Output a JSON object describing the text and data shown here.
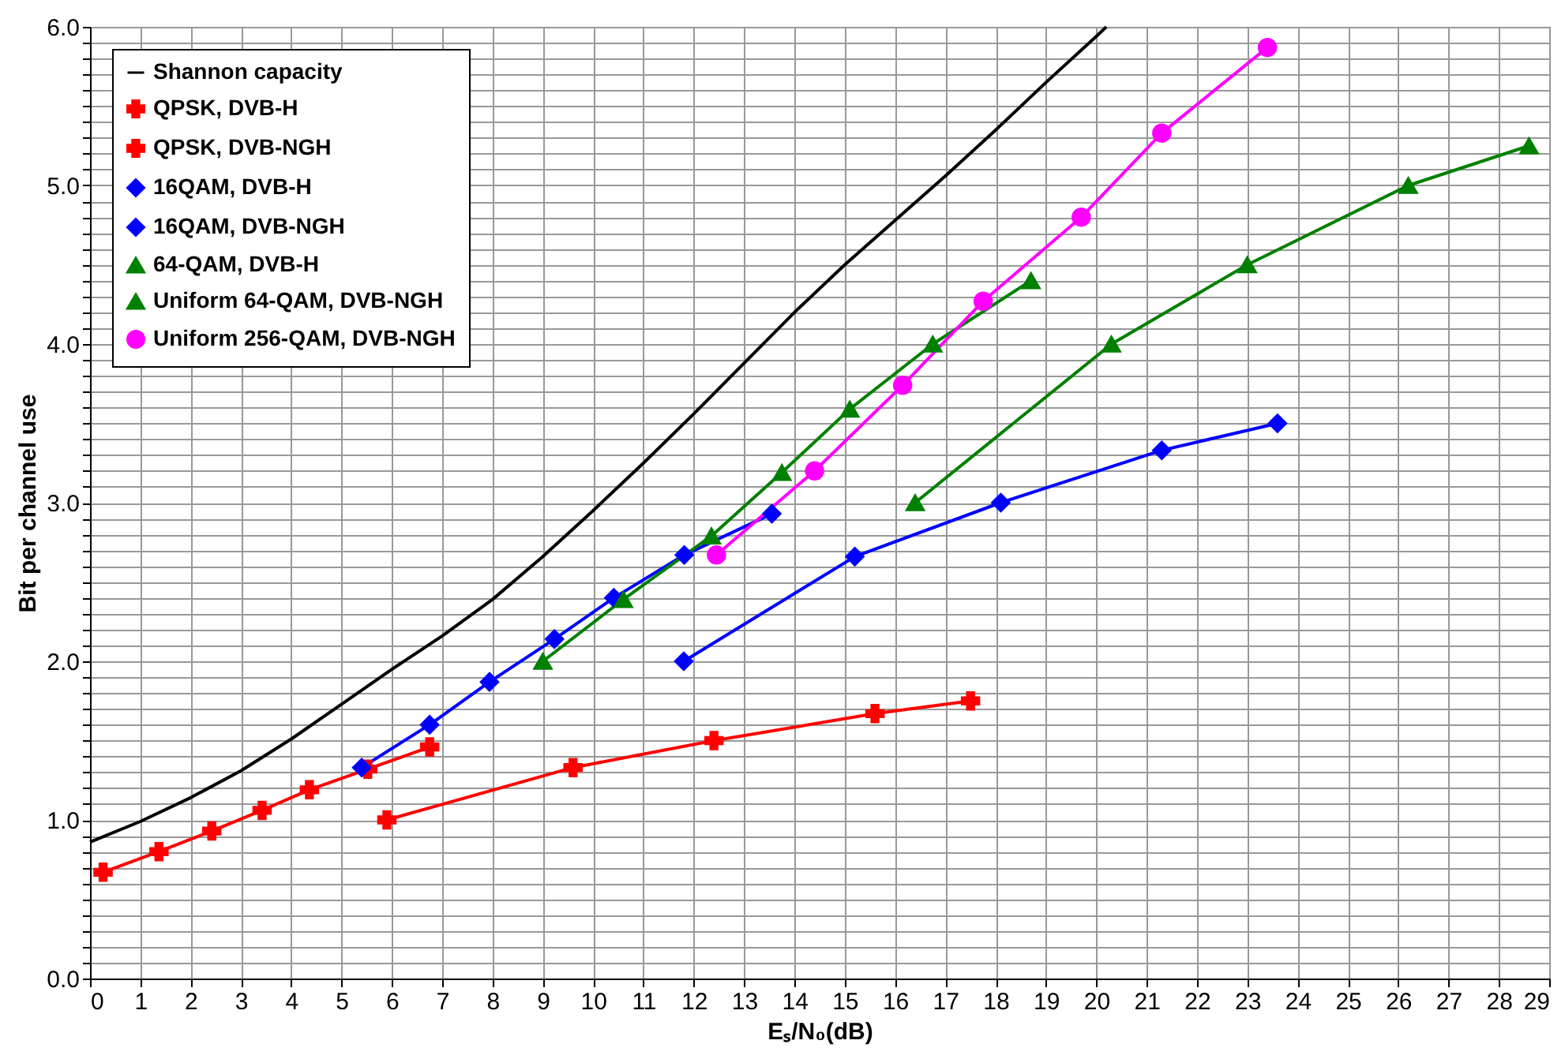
{
  "chart_data": {
    "type": "line",
    "xlabel": "Eₛ/N₀(dB)",
    "ylabel": "Bit per channel use",
    "xlim": [
      0,
      29
    ],
    "ylim": [
      0,
      6
    ],
    "xticks": [
      0,
      1,
      2,
      3,
      4,
      5,
      6,
      7,
      8,
      9,
      10,
      11,
      12,
      13,
      14,
      15,
      16,
      17,
      18,
      19,
      20,
      21,
      22,
      23,
      24,
      25,
      26,
      27,
      28,
      29
    ],
    "yticks": [
      {
        "value": 0,
        "label": "0.0"
      },
      {
        "value": 0.1,
        "label": null
      },
      {
        "value": 0.2,
        "label": null
      },
      {
        "value": 0.3,
        "label": null
      },
      {
        "value": 0.4,
        "label": null
      },
      {
        "value": 0.5,
        "label": null
      },
      {
        "value": 0.6,
        "label": null
      },
      {
        "value": 0.7,
        "label": null
      },
      {
        "value": 0.8,
        "label": null
      },
      {
        "value": 0.9,
        "label": null
      },
      {
        "value": 1,
        "label": "1.0"
      },
      {
        "value": 1.1,
        "label": null
      },
      {
        "value": 1.2,
        "label": null
      },
      {
        "value": 1.3,
        "label": null
      },
      {
        "value": 1.4,
        "label": null
      },
      {
        "value": 1.5,
        "label": null
      },
      {
        "value": 1.6,
        "label": null
      },
      {
        "value": 1.7,
        "label": null
      },
      {
        "value": 1.8,
        "label": null
      },
      {
        "value": 1.9,
        "label": null
      },
      {
        "value": 2,
        "label": "2.0"
      },
      {
        "value": 2.1,
        "label": null
      },
      {
        "value": 2.2,
        "label": null
      },
      {
        "value": 2.3,
        "label": null
      },
      {
        "value": 2.4,
        "label": null
      },
      {
        "value": 2.5,
        "label": null
      },
      {
        "value": 2.6,
        "label": null
      },
      {
        "value": 2.7,
        "label": null
      },
      {
        "value": 2.8,
        "label": null
      },
      {
        "value": 2.9,
        "label": null
      },
      {
        "value": 3,
        "label": "3.0"
      },
      {
        "value": 3.1,
        "label": null
      },
      {
        "value": 3.2,
        "label": null
      },
      {
        "value": 3.3,
        "label": null
      },
      {
        "value": 3.4,
        "label": null
      },
      {
        "value": 3.5,
        "label": null
      },
      {
        "value": 3.6,
        "label": null
      },
      {
        "value": 3.7,
        "label": null
      },
      {
        "value": 3.8,
        "label": null
      },
      {
        "value": 3.9,
        "label": null
      },
      {
        "value": 4,
        "label": "4.0"
      },
      {
        "value": 4.1,
        "label": null
      },
      {
        "value": 4.2,
        "label": null
      },
      {
        "value": 4.3,
        "label": null
      },
      {
        "value": 4.4,
        "label": null
      },
      {
        "value": 4.5,
        "label": null
      },
      {
        "value": 4.6,
        "label": null
      },
      {
        "value": 4.7,
        "label": null
      },
      {
        "value": 4.8,
        "label": null
      },
      {
        "value": 4.9,
        "label": null
      },
      {
        "value": 5,
        "label": "5.0"
      },
      {
        "value": 5.1,
        "label": null
      },
      {
        "value": 5.2,
        "label": null
      },
      {
        "value": 5.3,
        "label": null
      },
      {
        "value": 5.4,
        "label": null
      },
      {
        "value": 5.5,
        "label": null
      },
      {
        "value": 5.6,
        "label": null
      },
      {
        "value": 5.7,
        "label": null
      },
      {
        "value": 5.8,
        "label": null
      },
      {
        "value": 5.9,
        "label": null
      },
      {
        "value": 6,
        "label": "6.0"
      }
    ],
    "grid": true,
    "legend": "top left",
    "series": [
      {
        "name": "Shannon capacity",
        "color": "#000000",
        "marker": "none",
        "x": [
          0,
          1,
          2,
          3,
          4,
          5,
          6,
          7,
          8,
          9,
          10,
          11,
          12,
          13,
          14,
          15,
          16,
          17,
          18,
          19,
          20,
          20.2
        ],
        "values": [
          0.86,
          0.99,
          1.14,
          1.31,
          1.51,
          1.73,
          1.95,
          2.16,
          2.39,
          2.66,
          2.95,
          3.25,
          3.56,
          3.88,
          4.2,
          4.5,
          4.78,
          5.06,
          5.35,
          5.65,
          5.94,
          6.0
        ]
      },
      {
        "name": "QPSK, DVB-H",
        "color": "#ff0000",
        "marker": "cross",
        "x": [
          5.9,
          9.6,
          12.4,
          15.6,
          17.5
        ],
        "values": [
          1.0,
          1.33,
          1.5,
          1.67,
          1.75
        ]
      },
      {
        "name": "QPSK, DVB-NGH",
        "color": "#ff0000",
        "marker": "cross",
        "x": [
          0.26,
          1.37,
          2.42,
          3.42,
          4.36,
          5.52,
          6.75
        ],
        "values": [
          0.67,
          0.8,
          0.93,
          1.06,
          1.19,
          1.32,
          1.46
        ]
      },
      {
        "name": "16QAM, DVB-H",
        "color": "#0000ff",
        "marker": "diamond",
        "x": [
          11.8,
          15.2,
          18.1,
          21.3,
          23.6
        ],
        "values": [
          2.0,
          2.66,
          3.0,
          3.33,
          3.5
        ]
      },
      {
        "name": "16QAM, DVB-NGH",
        "color": "#0000ff",
        "marker": "diamond",
        "x": [
          5.4,
          6.75,
          7.94,
          9.23,
          10.41,
          11.81,
          13.55
        ],
        "values": [
          1.33,
          1.6,
          1.87,
          2.14,
          2.4,
          2.67,
          2.93
        ]
      },
      {
        "name": "64-QAM, DVB-H",
        "color": "#008000",
        "marker": "triangle",
        "x": [
          16.4,
          20.3,
          23.0,
          26.2,
          28.6
        ],
        "values": [
          3.0,
          4.0,
          4.5,
          5.0,
          5.25
        ]
      },
      {
        "name": "Uniform 64-QAM, DVB-NGH",
        "color": "#008000",
        "marker": "triangle",
        "x": [
          9.0,
          10.6,
          12.35,
          13.75,
          15.1,
          16.75,
          18.7
        ],
        "values": [
          2.0,
          2.39,
          2.79,
          3.19,
          3.59,
          4.0,
          4.4
        ]
      },
      {
        "name": "Uniform 256-QAM, DVB-NGH",
        "color": "#ff00ff",
        "marker": "circle",
        "x": [
          12.45,
          14.4,
          16.15,
          17.75,
          19.7,
          21.3,
          23.4
        ],
        "values": [
          2.67,
          3.2,
          3.74,
          4.27,
          4.8,
          5.33,
          5.87
        ]
      }
    ]
  }
}
